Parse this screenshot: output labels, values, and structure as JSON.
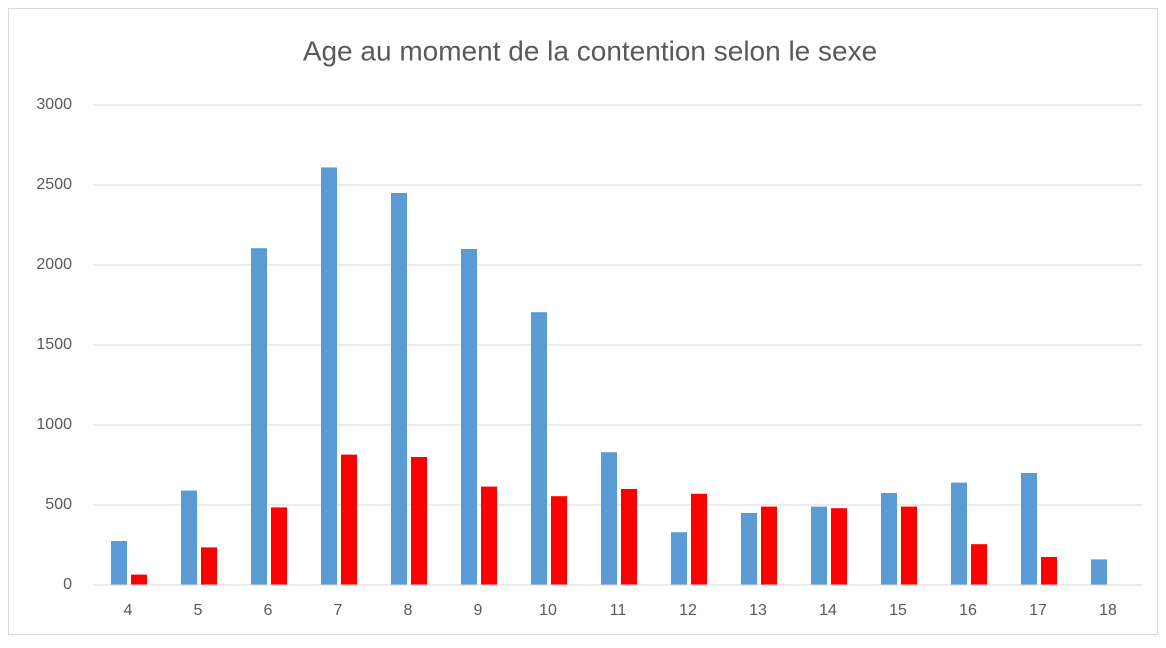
{
  "chart_data": {
    "type": "bar",
    "title": "Age au moment de la contention selon le sexe",
    "categories": [
      "4",
      "5",
      "6",
      "7",
      "8",
      "9",
      "10",
      "11",
      "12",
      "13",
      "14",
      "15",
      "16",
      "17",
      "18"
    ],
    "series": [
      {
        "color": "#5b9bd5",
        "values": [
          275,
          590,
          2105,
          2610,
          2450,
          2100,
          1705,
          830,
          330,
          450,
          490,
          575,
          640,
          700,
          160
        ]
      },
      {
        "color": "#ff0000",
        "values": [
          65,
          235,
          485,
          815,
          800,
          615,
          555,
          600,
          570,
          490,
          480,
          490,
          255,
          175,
          null
        ]
      }
    ],
    "ylim": [
      0,
      3000
    ],
    "yticks": [
      0,
      500,
      1000,
      1500,
      2000,
      2500,
      3000
    ],
    "grid": true
  }
}
